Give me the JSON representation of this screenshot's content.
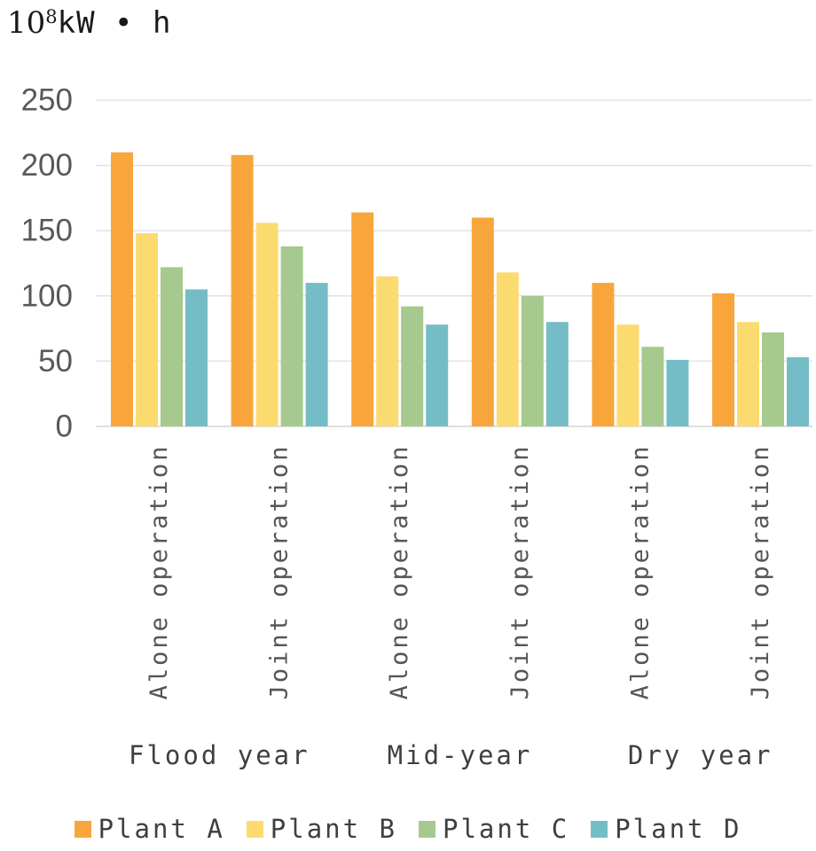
{
  "unit_label": {
    "base": "10",
    "exponent": "8",
    "suffix": "kW • h"
  },
  "chart_data": {
    "type": "bar",
    "title": "",
    "ylabel": "10⁸kW•h",
    "xlabel": "",
    "ylim": [
      0,
      250
    ],
    "yticks": [
      0,
      50,
      100,
      150,
      200,
      250
    ],
    "grid": true,
    "legend_position": "bottom",
    "categories": [
      "Alone operation",
      "Joint operation",
      "Alone operation",
      "Joint operation",
      "Alone operation",
      "Joint operation"
    ],
    "category_groups": [
      {
        "label": "Flood year",
        "span": [
          0,
          1
        ]
      },
      {
        "label": "Mid-year",
        "span": [
          2,
          3
        ]
      },
      {
        "label": "Dry year",
        "span": [
          4,
          5
        ]
      }
    ],
    "series": [
      {
        "name": "Plant A",
        "color": "#F8A63C",
        "values": [
          210,
          208,
          164,
          160,
          110,
          102
        ]
      },
      {
        "name": "Plant B",
        "color": "#FBDB70",
        "values": [
          148,
          156,
          115,
          118,
          78,
          80
        ]
      },
      {
        "name": "Plant C",
        "color": "#A6C98E",
        "values": [
          122,
          138,
          92,
          100,
          61,
          72
        ]
      },
      {
        "name": "Plant D",
        "color": "#75BDC6",
        "values": [
          105,
          110,
          78,
          80,
          51,
          53
        ]
      }
    ],
    "colors": {
      "gridline": "#E2E2E2",
      "baseline": "#D6D6D6",
      "axis_text": "#595959",
      "label_text": "#3f3f3f"
    }
  }
}
